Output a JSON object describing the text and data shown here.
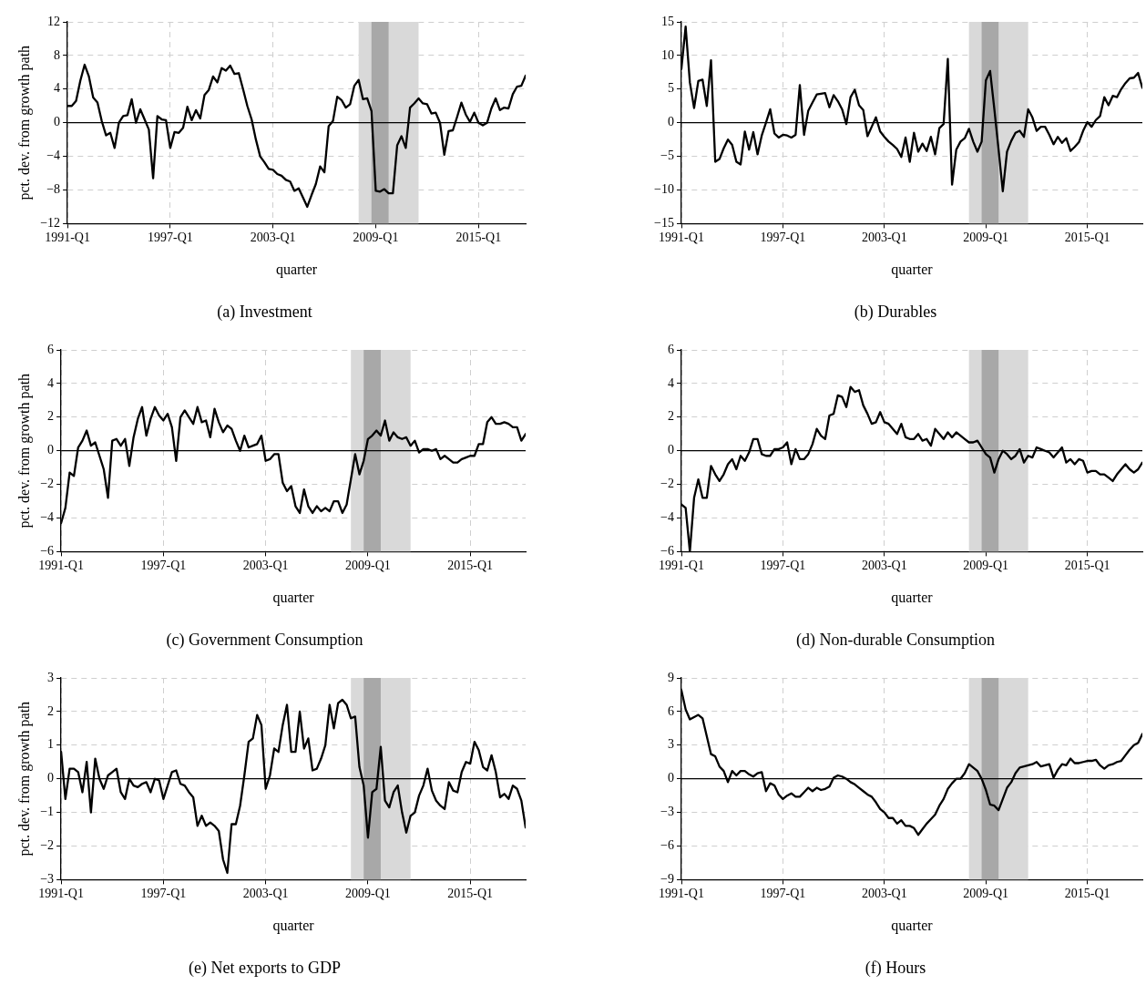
{
  "chart_data": [
    {
      "type": "line",
      "title": "(a) Investment",
      "xlabel": "quarter",
      "ylabel": "pct. dev. from growth path",
      "color": "#000000",
      "grid": true,
      "xlim": [
        "1991-01",
        "2017-10"
      ],
      "ylim": [
        -12,
        12
      ],
      "xticks": [
        {
          "value": "1991-01",
          "label": "1991-Q1"
        },
        {
          "value": "1997-01",
          "label": "1997-Q1"
        },
        {
          "value": "2003-01",
          "label": "2003-Q1"
        },
        {
          "value": "2009-01",
          "label": "2009-Q1"
        },
        {
          "value": "2015-01",
          "label": "2015-Q1"
        }
      ],
      "yticks": [
        {
          "value": -12,
          "label": "−12"
        },
        {
          "value": -8,
          "label": "−8"
        },
        {
          "value": -4,
          "label": "−4"
        },
        0,
        4,
        8,
        12
      ],
      "bands": [
        {
          "axis": "x",
          "from": "2008-01",
          "to": "2011-07",
          "color": "#d9d9d9"
        },
        {
          "axis": "x",
          "from": "2008-10",
          "to": "2009-10",
          "color": "#a8a8a8"
        }
      ],
      "ref_lines": [
        {
          "axis": "y",
          "value": 0,
          "color": "#000000"
        }
      ],
      "x": [
        "1991-01",
        "1991-04",
        "1991-07",
        "1991-10",
        "1992-01",
        "1992-04",
        "1992-07",
        "1992-10",
        "1993-01",
        "1993-04",
        "1993-07",
        "1993-10",
        "1994-01",
        "1994-04",
        "1994-07",
        "1994-10",
        "1995-01",
        "1995-04",
        "1995-07",
        "1995-10",
        "1996-01",
        "1996-04",
        "1996-07",
        "1996-10",
        "1997-01",
        "1997-04",
        "1997-07",
        "1997-10",
        "1998-01",
        "1998-04",
        "1998-07",
        "1998-10",
        "1999-01",
        "1999-04",
        "1999-07",
        "1999-10",
        "2000-01",
        "2000-04",
        "2000-07",
        "2000-10",
        "2001-01",
        "2001-04",
        "2001-07",
        "2001-10",
        "2002-01",
        "2002-04",
        "2002-07",
        "2002-10",
        "2003-01",
        "2003-04",
        "2003-07",
        "2003-10",
        "2004-01",
        "2004-04",
        "2004-07",
        "2004-10",
        "2005-01",
        "2005-04",
        "2005-07",
        "2005-10",
        "2006-01",
        "2006-04",
        "2006-07",
        "2006-10",
        "2007-01",
        "2007-04",
        "2007-07",
        "2007-10",
        "2008-01",
        "2008-04",
        "2008-07",
        "2008-10",
        "2009-01",
        "2009-04",
        "2009-07",
        "2009-10",
        "2010-01",
        "2010-04",
        "2010-07",
        "2010-10",
        "2011-01",
        "2011-04",
        "2011-07",
        "2011-10",
        "2012-01",
        "2012-04",
        "2012-07",
        "2012-10",
        "2013-01",
        "2013-04",
        "2013-07",
        "2013-10",
        "2014-01",
        "2014-04",
        "2014-07",
        "2014-10",
        "2015-01",
        "2015-04",
        "2015-07",
        "2015-10",
        "2016-01",
        "2016-04",
        "2016-07",
        "2016-10",
        "2017-01",
        "2017-04",
        "2017-07",
        "2017-10"
      ],
      "values": [
        2.0,
        2.0,
        2.6,
        5.0,
        6.9,
        5.5,
        3.0,
        2.4,
        0.2,
        -1.5,
        -1.2,
        -3.0,
        0,
        0.8,
        0.9,
        2.8,
        0,
        1.6,
        0.4,
        -0.8,
        -6.6,
        0.8,
        0.4,
        0.3,
        -3.0,
        -1.1,
        -1.2,
        -0.6,
        1.9,
        0.3,
        1.5,
        0.5,
        3.3,
        3.9,
        5.5,
        4.8,
        6.5,
        6.2,
        6.8,
        5.8,
        5.9,
        4.0,
        2.0,
        0.4,
        -2.0,
        -4.0,
        -4.7,
        -5.5,
        -5.6,
        -6.1,
        -6.3,
        -6.8,
        -7.0,
        -8.1,
        -7.8,
        -8.9,
        -10.0,
        -8.6,
        -7.3,
        -5.2,
        -5.9,
        -0.4,
        0.2,
        3.1,
        2.7,
        1.8,
        2.2,
        4.4,
        5.1,
        2.8,
        2.9,
        1.4,
        -8.1,
        -8.2,
        -7.9,
        -8.4,
        -8.4,
        -2.7,
        -1.6,
        -3.0,
        1.8,
        2.3,
        2.9,
        2.3,
        2.2,
        1.1,
        1.2,
        0,
        -3.8,
        -1.0,
        -0.9,
        0.7,
        2.4,
        1.0,
        0.1,
        1.2,
        0,
        -0.3,
        0,
        1.7,
        2.9,
        1.5,
        1.8,
        1.7,
        3.4,
        4.3,
        4.4,
        5.6
      ]
    },
    {
      "type": "line",
      "title": "(b) Durables",
      "xlabel": "quarter",
      "color": "#000000",
      "grid": true,
      "xlim": [
        "1991-01",
        "2018-04"
      ],
      "ylim": [
        -15,
        15
      ],
      "xticks": [
        {
          "value": "1991-01",
          "label": "1991-Q1"
        },
        {
          "value": "1997-01",
          "label": "1997-Q1"
        },
        {
          "value": "2003-01",
          "label": "2003-Q1"
        },
        {
          "value": "2009-01",
          "label": "2009-Q1"
        },
        {
          "value": "2015-01",
          "label": "2015-Q1"
        }
      ],
      "yticks": [
        {
          "value": -15,
          "label": "−15"
        },
        {
          "value": -10,
          "label": "−10"
        },
        {
          "value": -5,
          "label": "−5"
        },
        0,
        5,
        10,
        15
      ],
      "bands": [
        {
          "axis": "x",
          "from": "2008-01",
          "to": "2011-07",
          "color": "#d9d9d9"
        },
        {
          "axis": "x",
          "from": "2008-10",
          "to": "2009-10",
          "color": "#a8a8a8"
        }
      ],
      "ref_lines": [
        {
          "axis": "y",
          "value": 0,
          "color": "#000000"
        }
      ],
      "x": [
        "1991-01",
        "1991-04",
        "1991-07",
        "1991-10",
        "1992-01",
        "1992-04",
        "1992-07",
        "1992-10",
        "1993-01",
        "1993-04",
        "1993-07",
        "1993-10",
        "1994-01",
        "1994-04",
        "1994-07",
        "1994-10",
        "1995-01",
        "1995-04",
        "1995-07",
        "1995-10",
        "1996-01",
        "1996-04",
        "1996-07",
        "1996-10",
        "1997-01",
        "1997-04",
        "1997-07",
        "1997-10",
        "1998-01",
        "1998-04",
        "1998-07",
        "1998-10",
        "1999-01",
        "1999-04",
        "1999-07",
        "1999-10",
        "2000-01",
        "2000-04",
        "2000-07",
        "2000-10",
        "2001-01",
        "2001-04",
        "2001-07",
        "2001-10",
        "2002-01",
        "2002-04",
        "2002-07",
        "2002-10",
        "2003-01",
        "2003-04",
        "2003-07",
        "2003-10",
        "2004-01",
        "2004-04",
        "2004-07",
        "2004-10",
        "2005-01",
        "2005-04",
        "2005-07",
        "2005-10",
        "2006-01",
        "2006-04",
        "2006-07",
        "2006-10",
        "2007-01",
        "2007-04",
        "2007-07",
        "2007-10",
        "2008-01",
        "2008-04",
        "2008-07",
        "2008-10",
        "2009-01",
        "2009-04",
        "2009-07",
        "2009-10",
        "2010-01",
        "2010-04",
        "2010-07",
        "2010-10",
        "2011-01",
        "2011-04",
        "2011-07",
        "2011-10",
        "2012-01",
        "2012-04",
        "2012-07",
        "2012-10",
        "2013-01",
        "2013-04",
        "2013-07",
        "2013-10",
        "2014-01",
        "2014-04",
        "2014-07",
        "2014-10",
        "2015-01",
        "2015-04",
        "2015-07",
        "2015-10",
        "2016-01",
        "2016-04",
        "2016-07",
        "2016-10",
        "2017-01",
        "2017-04",
        "2017-07",
        "2017-10",
        "2018-01",
        "2018-04"
      ],
      "values": [
        8.0,
        14.3,
        6.0,
        2.2,
        6.2,
        6.4,
        2.5,
        9.3,
        -5.8,
        -5.4,
        -3.8,
        -2.5,
        -3.3,
        -5.8,
        -6.2,
        -1.3,
        -4.0,
        -1.4,
        -4.7,
        -1.9,
        0,
        2.0,
        -1.6,
        -2.2,
        -1.8,
        -1.9,
        -2.2,
        -1.8,
        5.6,
        -1.8,
        1.8,
        3.0,
        4.2,
        4.3,
        4.4,
        2.3,
        4.1,
        3.2,
        2.0,
        -0.2,
        3.8,
        4.9,
        2.6,
        1.9,
        -2.0,
        -0.6,
        0.8,
        -1.3,
        -2.1,
        -2.8,
        -3.3,
        -3.9,
        -5.1,
        -2.2,
        -5.8,
        -1.5,
        -4.3,
        -3.1,
        -4.2,
        -2.1,
        -4.7,
        -0.8,
        -0.2,
        9.5,
        -9.2,
        -4.0,
        -2.8,
        -2.3,
        -0.9,
        -2.8,
        -4.3,
        -2.8,
        6.3,
        7.7,
        2.0,
        -4.0,
        -10.2,
        -4.3,
        -2.7,
        -1.5,
        -1.2,
        -2.1,
        2.0,
        0.8,
        -1.2,
        -0.6,
        -0.6,
        -1.8,
        -3.2,
        -2.1,
        -3.0,
        -2.3,
        -4.2,
        -3.6,
        -2.9,
        -1.2,
        0.1,
        -0.6,
        0.4,
        1.0,
        3.8,
        2.6,
        4.0,
        3.8,
        5.0,
        5.9,
        6.6,
        6.7,
        7.4,
        5.2
      ]
    },
    {
      "type": "line",
      "title": "(c) Government Consumption",
      "xlabel": "quarter",
      "ylabel": "pct. dev. from growth path",
      "color": "#000000",
      "grid": true,
      "xlim": [
        "1991-01",
        "2018-04"
      ],
      "ylim": [
        -6,
        6
      ],
      "xticks": [
        {
          "value": "1991-01",
          "label": "1991-Q1"
        },
        {
          "value": "1997-01",
          "label": "1997-Q1"
        },
        {
          "value": "2003-01",
          "label": "2003-Q1"
        },
        {
          "value": "2009-01",
          "label": "2009-Q1"
        },
        {
          "value": "2015-01",
          "label": "2015-Q1"
        }
      ],
      "yticks": [
        {
          "value": -6,
          "label": "−6"
        },
        {
          "value": -4,
          "label": "−4"
        },
        {
          "value": -2,
          "label": "−2"
        },
        0,
        2,
        4,
        6
      ],
      "bands": [
        {
          "axis": "x",
          "from": "2008-01",
          "to": "2011-07",
          "color": "#d9d9d9"
        },
        {
          "axis": "x",
          "from": "2008-10",
          "to": "2009-10",
          "color": "#a8a8a8"
        }
      ],
      "ref_lines": [
        {
          "axis": "y",
          "value": 0,
          "color": "#000000"
        }
      ],
      "x": [
        "1991-01",
        "1991-04",
        "1991-07",
        "1991-10",
        "1992-01",
        "1992-04",
        "1992-07",
        "1992-10",
        "1993-01",
        "1993-04",
        "1993-07",
        "1993-10",
        "1994-01",
        "1994-04",
        "1994-07",
        "1994-10",
        "1995-01",
        "1995-04",
        "1995-07",
        "1995-10",
        "1996-01",
        "1996-04",
        "1996-07",
        "1996-10",
        "1997-01",
        "1997-04",
        "1997-07",
        "1997-10",
        "1998-01",
        "1998-04",
        "1998-07",
        "1998-10",
        "1999-01",
        "1999-04",
        "1999-07",
        "1999-10",
        "2000-01",
        "2000-04",
        "2000-07",
        "2000-10",
        "2001-01",
        "2001-04",
        "2001-07",
        "2001-10",
        "2002-01",
        "2002-04",
        "2002-07",
        "2002-10",
        "2003-01",
        "2003-04",
        "2003-07",
        "2003-10",
        "2004-01",
        "2004-04",
        "2004-07",
        "2004-10",
        "2005-01",
        "2005-04",
        "2005-07",
        "2005-10",
        "2006-01",
        "2006-04",
        "2006-07",
        "2006-10",
        "2007-01",
        "2007-04",
        "2007-07",
        "2007-10",
        "2008-01",
        "2008-04",
        "2008-07",
        "2008-10",
        "2009-01",
        "2009-04",
        "2009-07",
        "2009-10",
        "2010-01",
        "2010-04",
        "2010-07",
        "2010-10",
        "2011-01",
        "2011-04",
        "2011-07",
        "2011-10",
        "2012-01",
        "2012-04",
        "2012-07",
        "2012-10",
        "2013-01",
        "2013-04",
        "2013-07",
        "2013-10",
        "2014-01",
        "2014-04",
        "2014-07",
        "2014-10",
        "2015-01",
        "2015-04",
        "2015-07",
        "2015-10",
        "2016-01",
        "2016-04",
        "2016-07",
        "2016-10",
        "2017-01",
        "2017-04",
        "2017-07",
        "2017-10",
        "2018-01",
        "2018-04"
      ],
      "values": [
        -4.3,
        -3.4,
        -1.3,
        -1.5,
        0.2,
        0.6,
        1.2,
        0.3,
        0.5,
        -0.3,
        -1.1,
        -2.8,
        0.6,
        0.7,
        0.3,
        0.7,
        -0.9,
        0.8,
        1.9,
        2.6,
        0.9,
        1.9,
        2.6,
        2.1,
        1.8,
        2.2,
        1.4,
        -0.6,
        2.0,
        2.4,
        2.0,
        1.6,
        2.6,
        1.7,
        1.8,
        0.8,
        2.5,
        1.7,
        1.1,
        1.5,
        1.3,
        0.6,
        0.0,
        0.9,
        0.2,
        0.3,
        0.4,
        0.9,
        -0.6,
        -0.5,
        -0.2,
        -0.2,
        -1.9,
        -2.4,
        -2.1,
        -3.3,
        -3.7,
        -2.3,
        -3.3,
        -3.7,
        -3.3,
        -3.6,
        -3.4,
        -3.6,
        -3.0,
        -3.0,
        -3.7,
        -3.2,
        -1.7,
        -0.2,
        -1.4,
        -0.6,
        0.7,
        0.9,
        1.2,
        0.9,
        1.8,
        0.6,
        1.1,
        0.8,
        0.7,
        0.8,
        0.3,
        0.6,
        -0.1,
        0.1,
        0.1,
        0,
        0.1,
        -0.5,
        -0.3,
        -0.5,
        -0.7,
        -0.7,
        -0.5,
        -0.4,
        -0.3,
        -0.3,
        0.4,
        0.4,
        1.7,
        2.0,
        1.6,
        1.6,
        1.7,
        1.6,
        1.4,
        1.4,
        0.6,
        1.0
      ]
    },
    {
      "type": "line",
      "title": "(d) Non-durable Consumption",
      "xlabel": "quarter",
      "color": "#000000",
      "grid": true,
      "xlim": [
        "1991-01",
        "2018-04"
      ],
      "ylim": [
        -6,
        6
      ],
      "xticks": [
        {
          "value": "1991-01",
          "label": "1991-Q1"
        },
        {
          "value": "1997-01",
          "label": "1997-Q1"
        },
        {
          "value": "2003-01",
          "label": "2003-Q1"
        },
        {
          "value": "2009-01",
          "label": "2009-Q1"
        },
        {
          "value": "2015-01",
          "label": "2015-Q1"
        }
      ],
      "yticks": [
        {
          "value": -6,
          "label": "−6"
        },
        {
          "value": -4,
          "label": "−4"
        },
        {
          "value": -2,
          "label": "−2"
        },
        0,
        2,
        4,
        6
      ],
      "bands": [
        {
          "axis": "x",
          "from": "2008-01",
          "to": "2011-07",
          "color": "#d9d9d9"
        },
        {
          "axis": "x",
          "from": "2008-10",
          "to": "2009-10",
          "color": "#a8a8a8"
        }
      ],
      "ref_lines": [
        {
          "axis": "y",
          "value": 0,
          "color": "#000000"
        }
      ],
      "x": [
        "1991-01",
        "1991-04",
        "1991-07",
        "1991-10",
        "1992-01",
        "1992-04",
        "1992-07",
        "1992-10",
        "1993-01",
        "1993-04",
        "1993-07",
        "1993-10",
        "1994-01",
        "1994-04",
        "1994-07",
        "1994-10",
        "1995-01",
        "1995-04",
        "1995-07",
        "1995-10",
        "1996-01",
        "1996-04",
        "1996-07",
        "1996-10",
        "1997-01",
        "1997-04",
        "1997-07",
        "1997-10",
        "1998-01",
        "1998-04",
        "1998-07",
        "1998-10",
        "1999-01",
        "1999-04",
        "1999-07",
        "1999-10",
        "2000-01",
        "2000-04",
        "2000-07",
        "2000-10",
        "2001-01",
        "2001-04",
        "2001-07",
        "2001-10",
        "2002-01",
        "2002-04",
        "2002-07",
        "2002-10",
        "2003-01",
        "2003-04",
        "2003-07",
        "2003-10",
        "2004-01",
        "2004-04",
        "2004-07",
        "2004-10",
        "2005-01",
        "2005-04",
        "2005-07",
        "2005-10",
        "2006-01",
        "2006-04",
        "2006-07",
        "2006-10",
        "2007-01",
        "2007-04",
        "2007-07",
        "2007-10",
        "2008-01",
        "2008-04",
        "2008-07",
        "2008-10",
        "2009-01",
        "2009-04",
        "2009-07",
        "2009-10",
        "2010-01",
        "2010-04",
        "2010-07",
        "2010-10",
        "2011-01",
        "2011-04",
        "2011-07",
        "2011-10",
        "2012-01",
        "2012-04",
        "2012-07",
        "2012-10",
        "2013-01",
        "2013-04",
        "2013-07",
        "2013-10",
        "2014-01",
        "2014-04",
        "2014-07",
        "2014-10",
        "2015-01",
        "2015-04",
        "2015-07",
        "2015-10",
        "2016-01",
        "2016-04",
        "2016-07",
        "2016-10",
        "2017-01",
        "2017-04",
        "2017-07",
        "2017-10",
        "2018-01",
        "2018-04"
      ],
      "values": [
        -3.2,
        -3.4,
        -6.0,
        -2.8,
        -1.7,
        -2.8,
        -2.8,
        -0.9,
        -1.4,
        -1.8,
        -1.4,
        -0.8,
        -0.5,
        -1.1,
        -0.3,
        -0.6,
        -0.1,
        0.7,
        0.7,
        -0.2,
        -0.3,
        -0.3,
        0.1,
        0.1,
        0.2,
        0.5,
        -0.8,
        0.1,
        -0.5,
        -0.5,
        -0.2,
        0.4,
        1.3,
        0.9,
        0.7,
        2.1,
        2.2,
        3.3,
        3.2,
        2.6,
        3.8,
        3.5,
        3.6,
        2.7,
        2.2,
        1.6,
        1.7,
        2.3,
        1.7,
        1.6,
        1.3,
        1.0,
        1.6,
        0.8,
        0.7,
        0.7,
        1.0,
        0.6,
        0.7,
        0.3,
        1.3,
        1.0,
        0.7,
        1.1,
        0.8,
        1.1,
        0.9,
        0.7,
        0.5,
        0.5,
        0.6,
        0.2,
        -0.2,
        -0.4,
        -1.3,
        -0.5,
        0.0,
        -0.2,
        -0.5,
        -0.3,
        0.1,
        -0.7,
        -0.3,
        -0.4,
        0.2,
        0.1,
        0.0,
        -0.1,
        -0.4,
        -0.1,
        0.2,
        -0.7,
        -0.5,
        -0.8,
        -0.5,
        -0.6,
        -1.3,
        -1.2,
        -1.2,
        -1.4,
        -1.4,
        -1.6,
        -1.8,
        -1.4,
        -1.1,
        -0.8,
        -1.1,
        -1.3,
        -1.1,
        -0.7
      ]
    },
    {
      "type": "line",
      "title": "(e) Net exports to GDP",
      "xlabel": "quarter",
      "ylabel": "pct. dev. from growth path",
      "color": "#000000",
      "grid": true,
      "xlim": [
        "1991-01",
        "2018-04"
      ],
      "ylim": [
        -3,
        3
      ],
      "xticks": [
        {
          "value": "1991-01",
          "label": "1991-Q1"
        },
        {
          "value": "1997-01",
          "label": "1997-Q1"
        },
        {
          "value": "2003-01",
          "label": "2003-Q1"
        },
        {
          "value": "2009-01",
          "label": "2009-Q1"
        },
        {
          "value": "2015-01",
          "label": "2015-Q1"
        }
      ],
      "yticks": [
        {
          "value": -3,
          "label": "−3"
        },
        {
          "value": -2,
          "label": "−2"
        },
        {
          "value": -1,
          "label": "−1"
        },
        0,
        1,
        2,
        3
      ],
      "bands": [
        {
          "axis": "x",
          "from": "2008-01",
          "to": "2011-07",
          "color": "#d9d9d9"
        },
        {
          "axis": "x",
          "from": "2008-10",
          "to": "2009-10",
          "color": "#a8a8a8"
        }
      ],
      "ref_lines": [
        {
          "axis": "y",
          "value": 0,
          "color": "#000000"
        }
      ],
      "x": [
        "1991-01",
        "1991-04",
        "1991-07",
        "1991-10",
        "1992-01",
        "1992-04",
        "1992-07",
        "1992-10",
        "1993-01",
        "1993-04",
        "1993-07",
        "1993-10",
        "1994-01",
        "1994-04",
        "1994-07",
        "1994-10",
        "1995-01",
        "1995-04",
        "1995-07",
        "1995-10",
        "1996-01",
        "1996-04",
        "1996-07",
        "1996-10",
        "1997-01",
        "1997-04",
        "1997-07",
        "1997-10",
        "1998-01",
        "1998-04",
        "1998-07",
        "1998-10",
        "1999-01",
        "1999-04",
        "1999-07",
        "1999-10",
        "2000-01",
        "2000-04",
        "2000-07",
        "2000-10",
        "2001-01",
        "2001-04",
        "2001-07",
        "2001-10",
        "2002-01",
        "2002-04",
        "2002-07",
        "2002-10",
        "2003-01",
        "2003-04",
        "2003-07",
        "2003-10",
        "2004-01",
        "2004-04",
        "2004-07",
        "2004-10",
        "2005-01",
        "2005-04",
        "2005-07",
        "2005-10",
        "2006-01",
        "2006-04",
        "2006-07",
        "2006-10",
        "2007-01",
        "2007-04",
        "2007-07",
        "2007-10",
        "2008-01",
        "2008-04",
        "2008-07",
        "2008-10",
        "2009-01",
        "2009-04",
        "2009-07",
        "2009-10",
        "2010-01",
        "2010-04",
        "2010-07",
        "2010-10",
        "2011-01",
        "2011-04",
        "2011-07",
        "2011-10",
        "2012-01",
        "2012-04",
        "2012-07",
        "2012-10",
        "2013-01",
        "2013-04",
        "2013-07",
        "2013-10",
        "2014-01",
        "2014-04",
        "2014-07",
        "2014-10",
        "2015-01",
        "2015-04",
        "2015-07",
        "2015-10",
        "2016-01",
        "2016-04",
        "2016-07",
        "2016-10",
        "2017-01",
        "2017-04",
        "2017-07",
        "2017-10",
        "2018-01",
        "2018-04"
      ],
      "values": [
        0.8,
        -0.6,
        0.3,
        0.3,
        0.2,
        -0.4,
        0.5,
        -1.0,
        0.6,
        0.0,
        -0.3,
        0.1,
        0.2,
        0.3,
        -0.4,
        -0.6,
        0.0,
        -0.2,
        -0.25,
        -0.15,
        -0.1,
        -0.4,
        0.0,
        -0.05,
        -0.6,
        -0.2,
        0.2,
        0.25,
        -0.15,
        -0.2,
        -0.4,
        -0.55,
        -1.4,
        -1.1,
        -1.4,
        -1.3,
        -1.4,
        -1.55,
        -2.4,
        -2.8,
        -1.35,
        -1.35,
        -0.8,
        0.1,
        1.1,
        1.2,
        1.9,
        1.6,
        -0.3,
        0.1,
        0.9,
        0.8,
        1.6,
        2.2,
        0.8,
        0.8,
        2.0,
        0.9,
        1.2,
        0.25,
        0.3,
        0.6,
        1.0,
        2.2,
        1.5,
        2.25,
        2.35,
        2.2,
        1.8,
        1.85,
        0.35,
        -0.2,
        -1.75,
        -0.4,
        -0.3,
        0.95,
        -0.65,
        -0.85,
        -0.4,
        -0.2,
        -1.0,
        -1.6,
        -1.1,
        -1.0,
        -0.5,
        -0.2,
        0.3,
        -0.35,
        -0.65,
        -0.8,
        -0.9,
        -0.1,
        -0.35,
        -0.4,
        0.2,
        0.5,
        0.45,
        1.1,
        0.85,
        0.35,
        0.25,
        0.7,
        0.2,
        -0.55,
        -0.45,
        -0.6,
        -0.2,
        -0.3,
        -0.65,
        -1.45
      ]
    },
    {
      "type": "line",
      "title": "(f) Hours",
      "xlabel": "quarter",
      "color": "#000000",
      "grid": true,
      "xlim": [
        "1991-01",
        "2018-04"
      ],
      "ylim": [
        -9,
        9
      ],
      "xticks": [
        {
          "value": "1991-01",
          "label": "1991-Q1"
        },
        {
          "value": "1997-01",
          "label": "1997-Q1"
        },
        {
          "value": "2003-01",
          "label": "2003-Q1"
        },
        {
          "value": "2009-01",
          "label": "2009-Q1"
        },
        {
          "value": "2015-01",
          "label": "2015-Q1"
        }
      ],
      "yticks": [
        {
          "value": -9,
          "label": "−9"
        },
        {
          "value": -6,
          "label": "−6"
        },
        {
          "value": -3,
          "label": "−3"
        },
        0,
        3,
        6,
        9
      ],
      "bands": [
        {
          "axis": "x",
          "from": "2008-01",
          "to": "2011-07",
          "color": "#d9d9d9"
        },
        {
          "axis": "x",
          "from": "2008-10",
          "to": "2009-10",
          "color": "#a8a8a8"
        }
      ],
      "ref_lines": [
        {
          "axis": "y",
          "value": 0,
          "color": "#000000"
        }
      ],
      "x": [
        "1991-01",
        "1991-04",
        "1991-07",
        "1991-10",
        "1992-01",
        "1992-04",
        "1992-07",
        "1992-10",
        "1993-01",
        "1993-04",
        "1993-07",
        "1993-10",
        "1994-01",
        "1994-04",
        "1994-07",
        "1994-10",
        "1995-01",
        "1995-04",
        "1995-07",
        "1995-10",
        "1996-01",
        "1996-04",
        "1996-07",
        "1996-10",
        "1997-01",
        "1997-04",
        "1997-07",
        "1997-10",
        "1998-01",
        "1998-04",
        "1998-07",
        "1998-10",
        "1999-01",
        "1999-04",
        "1999-07",
        "1999-10",
        "2000-01",
        "2000-04",
        "2000-07",
        "2000-10",
        "2001-01",
        "2001-04",
        "2001-07",
        "2001-10",
        "2002-01",
        "2002-04",
        "2002-07",
        "2002-10",
        "2003-01",
        "2003-04",
        "2003-07",
        "2003-10",
        "2004-01",
        "2004-04",
        "2004-07",
        "2004-10",
        "2005-01",
        "2005-04",
        "2005-07",
        "2005-10",
        "2006-01",
        "2006-04",
        "2006-07",
        "2006-10",
        "2007-01",
        "2007-04",
        "2007-07",
        "2007-10",
        "2008-01",
        "2008-04",
        "2008-07",
        "2008-10",
        "2009-01",
        "2009-04",
        "2009-07",
        "2009-10",
        "2010-01",
        "2010-04",
        "2010-07",
        "2010-10",
        "2011-01",
        "2011-04",
        "2011-07",
        "2011-10",
        "2012-01",
        "2012-04",
        "2012-07",
        "2012-10",
        "2013-01",
        "2013-04",
        "2013-07",
        "2013-10",
        "2014-01",
        "2014-04",
        "2014-07",
        "2014-10",
        "2015-01",
        "2015-04",
        "2015-07",
        "2015-10",
        "2016-01",
        "2016-04",
        "2016-07",
        "2016-10",
        "2017-01",
        "2017-04",
        "2017-07",
        "2017-10",
        "2018-01",
        "2018-04"
      ],
      "values": [
        7.9,
        6.2,
        5.3,
        5.5,
        5.7,
        5.4,
        3.8,
        2.2,
        2.0,
        1.1,
        0.7,
        -0.3,
        0.7,
        0.3,
        0.7,
        0.7,
        0.4,
        0.2,
        0.5,
        0.6,
        -1.1,
        -0.4,
        -0.6,
        -1.4,
        -1.8,
        -1.5,
        -1.3,
        -1.6,
        -1.6,
        -1.2,
        -0.8,
        -1.1,
        -0.8,
        -1.0,
        -0.9,
        -0.7,
        0.1,
        0.3,
        0.2,
        0.0,
        -0.3,
        -0.5,
        -0.8,
        -1.1,
        -1.4,
        -1.6,
        -2.1,
        -2.7,
        -3.0,
        -3.5,
        -3.5,
        -4.0,
        -3.7,
        -4.2,
        -4.2,
        -4.4,
        -5.0,
        -4.5,
        -4.0,
        -3.6,
        -3.2,
        -2.4,
        -1.8,
        -0.9,
        -0.4,
        0.0,
        0.0,
        0.5,
        1.3,
        1.0,
        0.7,
        0.0,
        -1.0,
        -2.3,
        -2.4,
        -2.8,
        -1.8,
        -0.8,
        -0.3,
        0.5,
        1.0,
        1.1,
        1.2,
        1.3,
        1.5,
        1.1,
        1.2,
        1.3,
        0.1,
        0.8,
        1.3,
        1.2,
        1.8,
        1.4,
        1.4,
        1.5,
        1.6,
        1.6,
        1.7,
        1.2,
        0.9,
        1.2,
        1.3,
        1.5,
        1.6,
        2.1,
        2.6,
        3.0,
        3.2,
        4.0
      ]
    }
  ]
}
